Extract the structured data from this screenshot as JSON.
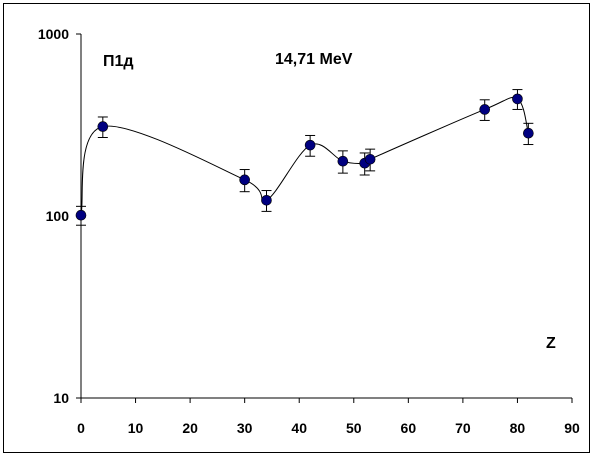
{
  "chart_data": {
    "type": "scatter",
    "title": "",
    "annotations": [
      "П1д",
      "14,71 MeV"
    ],
    "xlabel": "Z",
    "ylabel": "",
    "xlim": [
      0,
      90
    ],
    "ylim": [
      10,
      1000
    ],
    "yscale": "log",
    "grid": false,
    "x_ticks": [
      "0",
      "10",
      "20",
      "30",
      "40",
      "50",
      "60",
      "70",
      "80",
      "90"
    ],
    "y_ticks": [
      "10",
      "100",
      "1000"
    ],
    "series": [
      {
        "marker_color": "#000080",
        "line": "smooth",
        "points": [
          {
            "x": 0,
            "y": 101,
            "err": 12
          },
          {
            "x": 4,
            "y": 310,
            "err": 40
          },
          {
            "x": 30,
            "y": 158,
            "err": 22
          },
          {
            "x": 34,
            "y": 122,
            "err": 16
          },
          {
            "x": 42,
            "y": 245,
            "err": 32
          },
          {
            "x": 48,
            "y": 200,
            "err": 28
          },
          {
            "x": 52,
            "y": 195,
            "err": 27
          },
          {
            "x": 53,
            "y": 205,
            "err": 28
          },
          {
            "x": 74,
            "y": 385,
            "err": 50
          },
          {
            "x": 80,
            "y": 440,
            "err": 55
          },
          {
            "x": 82,
            "y": 285,
            "err": 38
          }
        ]
      }
    ]
  }
}
